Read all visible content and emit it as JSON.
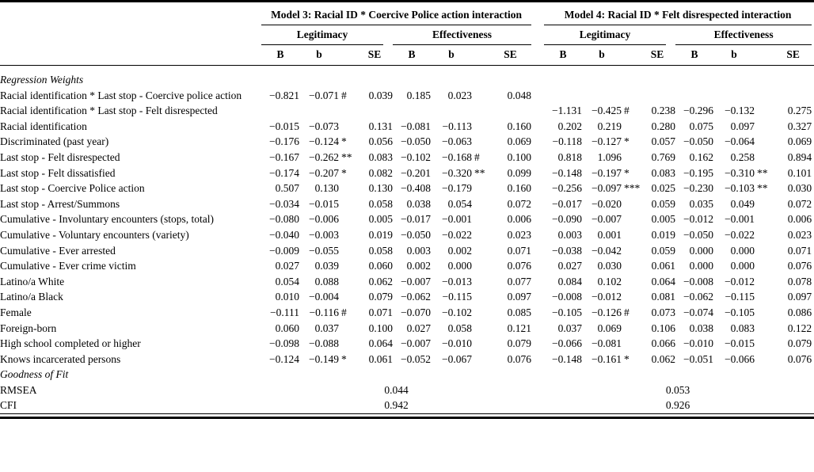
{
  "table": {
    "models": [
      {
        "title": "Model 3: Racial ID * Coercive Police action interaction"
      },
      {
        "title": "Model 4: Racial ID * Felt disrespected interaction"
      }
    ],
    "subheaders": [
      "Legitimacy",
      "Effectiveness"
    ],
    "columns": [
      "B",
      "b",
      "SE"
    ],
    "rows": [
      {
        "type": "section",
        "label": "Regression Weights"
      },
      {
        "type": "data",
        "label": "Racial identification * Last stop - Coercive police action",
        "m3": [
          "−0.821",
          "−0.071",
          "0.039",
          "0.185",
          "0.023",
          "0.048"
        ],
        "m3sig": [
          "#",
          ""
        ],
        "m4": [
          "",
          "",
          "",
          "",
          "",
          ""
        ],
        "m4sig": [
          "",
          ""
        ]
      },
      {
        "type": "data",
        "label": "Racial identification * Last stop - Felt disrespected",
        "m3": [
          "",
          "",
          "",
          "",
          "",
          ""
        ],
        "m3sig": [
          "",
          ""
        ],
        "m4": [
          "−1.131",
          "−0.425",
          "0.238",
          "−0.296",
          "−0.132",
          "0.275"
        ],
        "m4sig": [
          "#",
          ""
        ]
      },
      {
        "type": "data",
        "label": "Racial identification",
        "m3": [
          "−0.015",
          "−0.073",
          "0.131",
          "−0.081",
          "−0.113",
          "0.160"
        ],
        "m3sig": [
          "",
          ""
        ],
        "m4": [
          "0.202",
          "0.219",
          "0.280",
          "0.075",
          "0.097",
          "0.327"
        ],
        "m4sig": [
          "",
          ""
        ]
      },
      {
        "type": "data",
        "label": "Discriminated (past year)",
        "m3": [
          "−0.176",
          "−0.124",
          "0.056",
          "−0.050",
          "−0.063",
          "0.069"
        ],
        "m3sig": [
          "*",
          ""
        ],
        "m4": [
          "−0.118",
          "−0.127",
          "0.057",
          "−0.050",
          "−0.064",
          "0.069"
        ],
        "m4sig": [
          "*",
          ""
        ]
      },
      {
        "type": "data",
        "label": "Last stop - Felt disrespected",
        "m3": [
          "−0.167",
          "−0.262",
          "0.083",
          "−0.102",
          "−0.168",
          "0.100"
        ],
        "m3sig": [
          "**",
          "#"
        ],
        "m4": [
          "0.818",
          "1.096",
          "0.769",
          "0.162",
          "0.258",
          "0.894"
        ],
        "m4sig": [
          "",
          ""
        ]
      },
      {
        "type": "data",
        "label": "Last stop - Felt dissatisfied",
        "m3": [
          "−0.174",
          "−0.207",
          "0.082",
          "−0.201",
          "−0.320",
          "0.099"
        ],
        "m3sig": [
          "*",
          "**"
        ],
        "m4": [
          "−0.148",
          "−0.197",
          "0.083",
          "−0.195",
          "−0.310",
          "0.101"
        ],
        "m4sig": [
          "*",
          "**"
        ]
      },
      {
        "type": "data",
        "label": "Last stop - Coercive Police action",
        "m3": [
          "0.507",
          "0.130",
          "0.130",
          "−0.408",
          "−0.179",
          "0.160"
        ],
        "m3sig": [
          "",
          ""
        ],
        "m4": [
          "−0.256",
          "−0.097",
          "0.025",
          "−0.230",
          "−0.103",
          "0.030"
        ],
        "m4sig": [
          "***",
          "**"
        ]
      },
      {
        "type": "data",
        "label": "Last stop - Arrest/Summons",
        "m3": [
          "−0.034",
          "−0.015",
          "0.058",
          "0.038",
          "0.054",
          "0.072"
        ],
        "m3sig": [
          "",
          ""
        ],
        "m4": [
          "−0.017",
          "−0.020",
          "0.059",
          "0.035",
          "0.049",
          "0.072"
        ],
        "m4sig": [
          "",
          ""
        ]
      },
      {
        "type": "data",
        "label": "Cumulative - Involuntary encounters (stops, total)",
        "m3": [
          "−0.080",
          "−0.006",
          "0.005",
          "−0.017",
          "−0.001",
          "0.006"
        ],
        "m3sig": [
          "",
          ""
        ],
        "m4": [
          "−0.090",
          "−0.007",
          "0.005",
          "−0.012",
          "−0.001",
          "0.006"
        ],
        "m4sig": [
          "",
          ""
        ]
      },
      {
        "type": "data",
        "label": "Cumulative - Voluntary encounters (variety)",
        "m3": [
          "−0.040",
          "−0.003",
          "0.019",
          "−0.050",
          "−0.022",
          "0.023"
        ],
        "m3sig": [
          "",
          ""
        ],
        "m4": [
          "0.003",
          "0.001",
          "0.019",
          "−0.050",
          "−0.022",
          "0.023"
        ],
        "m4sig": [
          "",
          ""
        ]
      },
      {
        "type": "data",
        "label": "Cumulative - Ever arrested",
        "m3": [
          "−0.009",
          "−0.055",
          "0.058",
          "0.003",
          "0.002",
          "0.071"
        ],
        "m3sig": [
          "",
          ""
        ],
        "m4": [
          "−0.038",
          "−0.042",
          "0.059",
          "0.000",
          "0.000",
          "0.071"
        ],
        "m4sig": [
          "",
          ""
        ]
      },
      {
        "type": "data",
        "label": "Cumulative - Ever crime victim",
        "m3": [
          "0.027",
          "0.039",
          "0.060",
          "0.002",
          "0.000",
          "0.076"
        ],
        "m3sig": [
          "",
          ""
        ],
        "m4": [
          "0.027",
          "0.030",
          "0.061",
          "0.000",
          "0.000",
          "0.076"
        ],
        "m4sig": [
          "",
          ""
        ]
      },
      {
        "type": "data",
        "label": "Latino/a White",
        "m3": [
          "0.054",
          "0.088",
          "0.062",
          "−0.007",
          "−0.013",
          "0.077"
        ],
        "m3sig": [
          "",
          ""
        ],
        "m4": [
          "0.084",
          "0.102",
          "0.064",
          "−0.008",
          "−0.012",
          "0.078"
        ],
        "m4sig": [
          "",
          ""
        ]
      },
      {
        "type": "data",
        "label": "Latino/a Black",
        "m3": [
          "0.010",
          "−0.004",
          "0.079",
          "−0.062",
          "−0.115",
          "0.097"
        ],
        "m3sig": [
          "",
          ""
        ],
        "m4": [
          "−0.008",
          "−0.012",
          "0.081",
          "−0.062",
          "−0.115",
          "0.097"
        ],
        "m4sig": [
          "",
          ""
        ]
      },
      {
        "type": "data",
        "label": "Female",
        "m3": [
          "−0.111",
          "−0.116",
          "0.071",
          "−0.070",
          "−0.102",
          "0.085"
        ],
        "m3sig": [
          "#",
          ""
        ],
        "m4": [
          "−0.105",
          "−0.126",
          "0.073",
          "−0.074",
          "−0.105",
          "0.086"
        ],
        "m4sig": [
          "#",
          ""
        ]
      },
      {
        "type": "data",
        "label": "Foreign-born",
        "m3": [
          "0.060",
          "0.037",
          "0.100",
          "0.027",
          "0.058",
          "0.121"
        ],
        "m3sig": [
          "",
          ""
        ],
        "m4": [
          "0.037",
          "0.069",
          "0.106",
          "0.038",
          "0.083",
          "0.122"
        ],
        "m4sig": [
          "",
          ""
        ]
      },
      {
        "type": "data",
        "label": "High school completed or higher",
        "m3": [
          "−0.098",
          "−0.088",
          "0.064",
          "−0.007",
          "−0.010",
          "0.079"
        ],
        "m3sig": [
          "",
          ""
        ],
        "m4": [
          "−0.066",
          "−0.081",
          "0.066",
          "−0.010",
          "−0.015",
          "0.079"
        ],
        "m4sig": [
          "",
          ""
        ]
      },
      {
        "type": "data",
        "label": "Knows incarcerated persons",
        "m3": [
          "−0.124",
          "−0.149",
          "0.061",
          "−0.052",
          "−0.067",
          "0.076"
        ],
        "m3sig": [
          "*",
          ""
        ],
        "m4": [
          "−0.148",
          "−0.161",
          "0.062",
          "−0.051",
          "−0.066",
          "0.076"
        ],
        "m4sig": [
          "*",
          ""
        ]
      },
      {
        "type": "section",
        "label": "Goodness of Fit"
      },
      {
        "type": "fit",
        "label": "RMSEA",
        "m3": "0.044",
        "m4": "0.053"
      },
      {
        "type": "fit",
        "label": "CFI",
        "m3": "0.942",
        "m4": "0.926"
      }
    ]
  }
}
